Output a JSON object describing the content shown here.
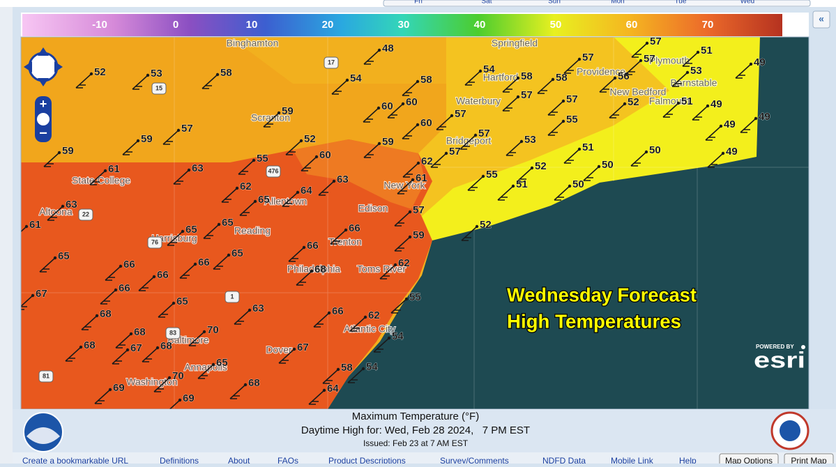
{
  "top_tabs": [
    "Fri",
    "Sat",
    "Sun",
    "Mon",
    "Tue",
    "Wed"
  ],
  "legend": {
    "ticks": [
      -10,
      0,
      10,
      20,
      30,
      40,
      50,
      60,
      70
    ]
  },
  "temperatures": [
    48,
    52,
    53,
    58,
    54,
    58,
    54,
    58,
    58,
    57,
    56,
    57,
    57,
    51,
    53,
    49,
    60,
    60,
    59,
    57,
    57,
    57,
    52,
    51,
    49,
    49,
    57,
    59,
    60,
    55,
    49,
    52,
    57,
    53,
    59,
    59,
    57,
    51,
    50,
    49,
    55,
    60,
    62,
    52,
    50,
    61,
    63,
    63,
    61,
    55,
    62,
    64,
    51,
    50,
    63,
    65,
    57,
    61,
    65,
    65,
    66,
    52,
    59,
    66,
    65,
    66,
    66,
    65,
    62,
    68,
    66,
    66,
    67,
    65,
    55,
    63,
    68,
    66,
    62,
    68,
    70,
    54,
    67,
    68,
    68,
    67,
    58,
    54,
    65,
    70,
    68,
    69,
    64,
    69
  ],
  "cities": [
    "Binghamton",
    "Springfield",
    "Providence",
    "Plymouth",
    "Hartford",
    "Barnstable",
    "New Bedford",
    "Falmouth",
    "Waterbury",
    "Scranton",
    "Bridgeport",
    "New York",
    "State College",
    "Allentown",
    "Altoona",
    "Edison",
    "Reading",
    "Harrisburg",
    "Trenton",
    "Philadelphia",
    "Toms River",
    "Atlantic City",
    "Baltimore",
    "Dover",
    "Annapolis",
    "Washington"
  ],
  "highways": [
    "17",
    "15",
    "476",
    "22",
    "76",
    "1",
    "81",
    "83"
  ],
  "overlay": {
    "line1": "Wednesday Forecast",
    "line2": "High Temperatures"
  },
  "attribution": {
    "powered_by": "POWERED BY",
    "brand": "esri"
  },
  "caption": {
    "title": "Maximum Temperature (°F)",
    "valid": "Daytime High for: Wed, Feb 28 2024,   7 PM EST",
    "issued": "Issued: Feb 23 at 7 AM EST"
  },
  "links": [
    "Create a bookmarkable URL",
    "Definitions",
    "About",
    "FAQs",
    "Product Descriptions",
    "Survey/Comments",
    "NDFD Data",
    "Mobile Link",
    "Help"
  ],
  "buttons": [
    "Map Options",
    "Print Map"
  ]
}
